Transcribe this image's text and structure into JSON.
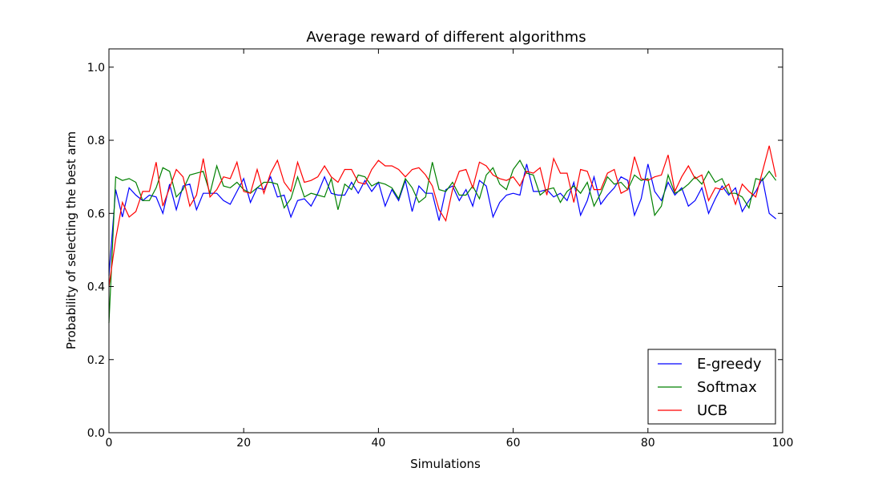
{
  "chart_data": {
    "type": "line",
    "title": "Average reward of different algorithms",
    "xlabel": "Simulations",
    "ylabel": "Probability of selecting the best arm",
    "xlim": [
      0,
      100
    ],
    "ylim": [
      0.0,
      1.05
    ],
    "xticks": [
      0,
      20,
      40,
      60,
      80,
      100
    ],
    "xtick_labels": [
      "0",
      "20",
      "40",
      "60",
      "80",
      "100"
    ],
    "yticks": [
      0.0,
      0.2,
      0.4,
      0.6,
      0.8,
      1.0
    ],
    "ytick_labels": [
      "0.0",
      "0.2",
      "0.4",
      "0.6",
      "0.8",
      "1.0"
    ],
    "grid": false,
    "legend_position": "bottom-right",
    "x": [
      0,
      1,
      2,
      3,
      4,
      5,
      6,
      7,
      8,
      9,
      10,
      11,
      12,
      13,
      14,
      15,
      16,
      17,
      18,
      19,
      20,
      21,
      22,
      23,
      24,
      25,
      26,
      27,
      28,
      29,
      30,
      31,
      32,
      33,
      34,
      35,
      36,
      37,
      38,
      39,
      40,
      41,
      42,
      43,
      44,
      45,
      46,
      47,
      48,
      49,
      50,
      51,
      52,
      53,
      54,
      55,
      56,
      57,
      58,
      59,
      60,
      61,
      62,
      63,
      64,
      65,
      66,
      67,
      68,
      69,
      70,
      71,
      72,
      73,
      74,
      75,
      76,
      77,
      78,
      79,
      80,
      81,
      82,
      83,
      84,
      85,
      86,
      87,
      88,
      89,
      90,
      91,
      92,
      93,
      94,
      95,
      96,
      97,
      98,
      99
    ],
    "series": [
      {
        "name": "E-greedy",
        "color": "#0000ff",
        "values": [
          0.43,
          0.665,
          0.59,
          0.67,
          0.65,
          0.635,
          0.65,
          0.645,
          0.6,
          0.68,
          0.61,
          0.675,
          0.68,
          0.61,
          0.655,
          0.655,
          0.655,
          0.635,
          0.625,
          0.66,
          0.695,
          0.63,
          0.67,
          0.665,
          0.7,
          0.645,
          0.65,
          0.59,
          0.635,
          0.64,
          0.62,
          0.655,
          0.7,
          0.655,
          0.65,
          0.65,
          0.685,
          0.655,
          0.69,
          0.66,
          0.685,
          0.62,
          0.665,
          0.635,
          0.69,
          0.605,
          0.675,
          0.655,
          0.655,
          0.58,
          0.665,
          0.675,
          0.635,
          0.665,
          0.62,
          0.69,
          0.675,
          0.59,
          0.63,
          0.65,
          0.655,
          0.65,
          0.735,
          0.66,
          0.66,
          0.665,
          0.645,
          0.655,
          0.635,
          0.685,
          0.595,
          0.635,
          0.7,
          0.625,
          0.65,
          0.67,
          0.7,
          0.69,
          0.595,
          0.64,
          0.735,
          0.66,
          0.635,
          0.685,
          0.65,
          0.67,
          0.62,
          0.635,
          0.67,
          0.6,
          0.64,
          0.675,
          0.65,
          0.67,
          0.605,
          0.635,
          0.66,
          0.695,
          0.6,
          0.585
        ]
      },
      {
        "name": "Softmax",
        "color": "#008000",
        "values": [
          0.3,
          0.7,
          0.69,
          0.695,
          0.685,
          0.635,
          0.635,
          0.67,
          0.725,
          0.715,
          0.645,
          0.665,
          0.705,
          0.71,
          0.715,
          0.655,
          0.73,
          0.675,
          0.67,
          0.685,
          0.665,
          0.655,
          0.67,
          0.685,
          0.685,
          0.68,
          0.615,
          0.64,
          0.7,
          0.645,
          0.655,
          0.65,
          0.645,
          0.695,
          0.61,
          0.68,
          0.665,
          0.705,
          0.7,
          0.675,
          0.685,
          0.68,
          0.67,
          0.64,
          0.695,
          0.67,
          0.63,
          0.645,
          0.74,
          0.665,
          0.66,
          0.685,
          0.65,
          0.65,
          0.675,
          0.64,
          0.705,
          0.725,
          0.68,
          0.665,
          0.72,
          0.745,
          0.71,
          0.705,
          0.65,
          0.665,
          0.67,
          0.63,
          0.66,
          0.675,
          0.655,
          0.685,
          0.62,
          0.655,
          0.7,
          0.68,
          0.685,
          0.665,
          0.705,
          0.69,
          0.695,
          0.595,
          0.62,
          0.705,
          0.655,
          0.665,
          0.68,
          0.7,
          0.68,
          0.715,
          0.685,
          0.695,
          0.655,
          0.655,
          0.645,
          0.615,
          0.695,
          0.69,
          0.715,
          0.69
        ]
      },
      {
        "name": "UCB",
        "color": "#ff0000",
        "values": [
          0.4,
          0.53,
          0.63,
          0.59,
          0.605,
          0.66,
          0.66,
          0.74,
          0.62,
          0.67,
          0.72,
          0.7,
          0.62,
          0.65,
          0.75,
          0.645,
          0.665,
          0.7,
          0.695,
          0.74,
          0.66,
          0.655,
          0.72,
          0.655,
          0.71,
          0.745,
          0.685,
          0.66,
          0.74,
          0.685,
          0.69,
          0.7,
          0.73,
          0.7,
          0.685,
          0.72,
          0.72,
          0.685,
          0.68,
          0.72,
          0.745,
          0.73,
          0.73,
          0.72,
          0.7,
          0.72,
          0.725,
          0.705,
          0.675,
          0.61,
          0.58,
          0.665,
          0.715,
          0.72,
          0.67,
          0.74,
          0.73,
          0.705,
          0.695,
          0.69,
          0.7,
          0.675,
          0.715,
          0.71,
          0.725,
          0.65,
          0.75,
          0.71,
          0.71,
          0.63,
          0.72,
          0.715,
          0.665,
          0.665,
          0.71,
          0.72,
          0.655,
          0.665,
          0.755,
          0.695,
          0.69,
          0.7,
          0.705,
          0.76,
          0.66,
          0.7,
          0.73,
          0.695,
          0.705,
          0.635,
          0.67,
          0.665,
          0.68,
          0.625,
          0.68,
          0.66,
          0.645,
          0.715,
          0.785,
          0.7
        ]
      }
    ]
  }
}
